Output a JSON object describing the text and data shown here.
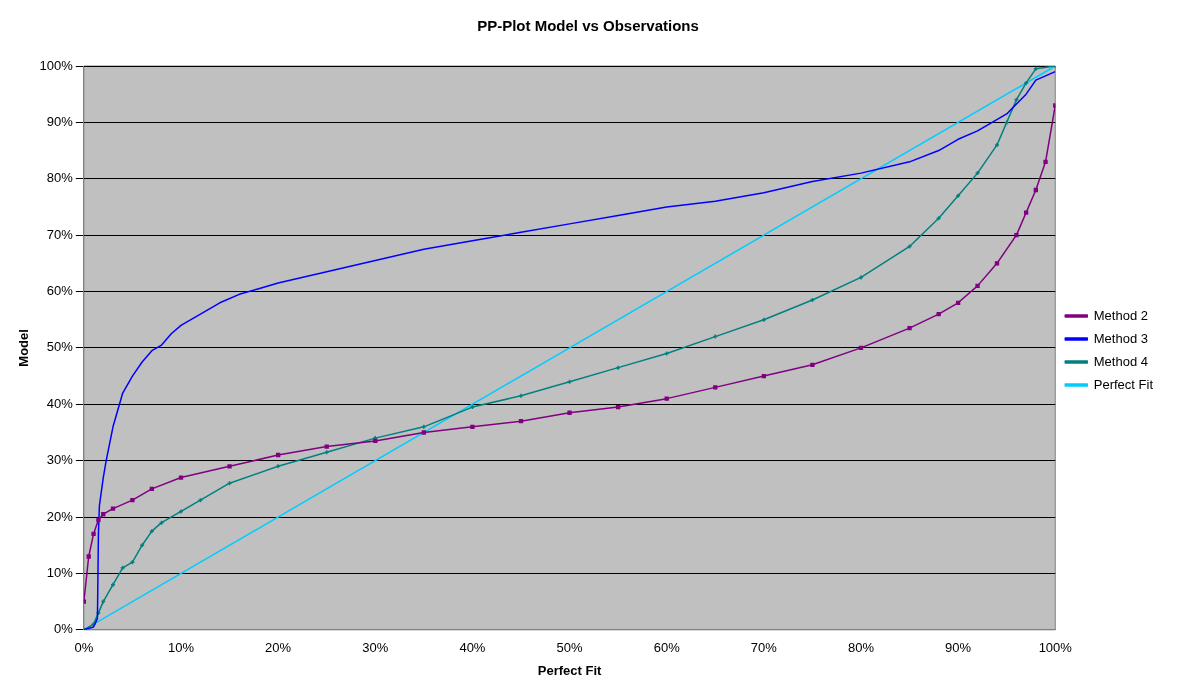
{
  "chart_data": {
    "type": "line",
    "title": "PP-Plot Model vs Observations",
    "xlabel": "Perfect Fit",
    "ylabel": "Model",
    "xlim": [
      0,
      100
    ],
    "ylim": [
      0,
      100
    ],
    "xticks": [
      {
        "value": 0,
        "label": "0%"
      },
      {
        "value": 10,
        "label": "10%"
      },
      {
        "value": 20,
        "label": "20%"
      },
      {
        "value": 30,
        "label": "30%"
      },
      {
        "value": 40,
        "label": "40%"
      },
      {
        "value": 50,
        "label": "50%"
      },
      {
        "value": 60,
        "label": "60%"
      },
      {
        "value": 70,
        "label": "70%"
      },
      {
        "value": 80,
        "label": "80%"
      },
      {
        "value": 90,
        "label": "90%"
      },
      {
        "value": 100,
        "label": "100%"
      }
    ],
    "yticks": [
      {
        "value": 0,
        "label": "0%"
      },
      {
        "value": 10,
        "label": "10%"
      },
      {
        "value": 20,
        "label": "20%"
      },
      {
        "value": 30,
        "label": "30%"
      },
      {
        "value": 40,
        "label": "40%"
      },
      {
        "value": 50,
        "label": "50%"
      },
      {
        "value": 60,
        "label": "60%"
      },
      {
        "value": 70,
        "label": "70%"
      },
      {
        "value": 80,
        "label": "80%"
      },
      {
        "value": 90,
        "label": "90%"
      },
      {
        "value": 100,
        "label": "100%"
      }
    ],
    "grid": "y",
    "legend": "right",
    "line_style": "solid",
    "series": [
      {
        "name": "Method 2",
        "color": "#800080",
        "marker": "square",
        "x": [
          0,
          0.5,
          1,
          1.5,
          2,
          3,
          5,
          7,
          10,
          15,
          20,
          25,
          30,
          35,
          40,
          45,
          50,
          55,
          60,
          65,
          70,
          75,
          80,
          85,
          88,
          90,
          92,
          94,
          96,
          97,
          98,
          99,
          100
        ],
        "values": [
          5,
          13,
          17,
          19.5,
          20.5,
          21.5,
          23,
          25,
          27,
          29,
          31,
          32.5,
          33.5,
          35,
          36,
          37,
          38.5,
          39.5,
          41,
          43,
          45,
          47,
          50,
          53.5,
          56,
          58,
          61,
          65,
          70,
          74,
          78,
          83,
          93
        ]
      },
      {
        "name": "Method 3",
        "color": "#0000ff",
        "marker": "none",
        "x": [
          0,
          1,
          1.4,
          1.5,
          1.6,
          2,
          2.3,
          3,
          4,
          5,
          6,
          7,
          8,
          9,
          10,
          12,
          14,
          16,
          18,
          20,
          25,
          30,
          35,
          40,
          45,
          50,
          55,
          60,
          65,
          70,
          75,
          80,
          85,
          88,
          90,
          92,
          95,
          97,
          98,
          100
        ],
        "values": [
          0,
          0.5,
          2,
          17,
          22,
          27,
          30,
          36,
          42,
          45,
          47.5,
          49.5,
          50.5,
          52.5,
          54,
          56,
          58,
          59.5,
          60.5,
          61.5,
          63.5,
          65.5,
          67.5,
          69,
          70.5,
          72,
          73.5,
          75,
          76,
          77.5,
          79.5,
          81,
          83,
          85,
          87,
          88.5,
          91.5,
          95,
          97.5,
          99
        ]
      },
      {
        "name": "Method 4",
        "color": "#008080",
        "marker": "cross",
        "x": [
          0,
          1,
          1.5,
          2,
          3,
          4,
          5,
          6,
          7,
          8,
          10,
          12,
          15,
          20,
          25,
          30,
          35,
          40,
          45,
          50,
          55,
          60,
          65,
          70,
          75,
          80,
          85,
          88,
          90,
          92,
          94,
          95,
          96,
          97,
          98,
          100
        ],
        "values": [
          0,
          1,
          3,
          5,
          8,
          11,
          12,
          15,
          17.5,
          19,
          21,
          23,
          26,
          29,
          31.5,
          34,
          36,
          39.5,
          41.5,
          44,
          46.5,
          49,
          52,
          55,
          58.5,
          62.5,
          68,
          73,
          77,
          81,
          86,
          90,
          94,
          97,
          99.5,
          100
        ]
      },
      {
        "name": "Perfect Fit",
        "color": "#00ccff",
        "marker": "none",
        "x": [
          0,
          100
        ],
        "values": [
          0,
          100
        ]
      }
    ]
  }
}
